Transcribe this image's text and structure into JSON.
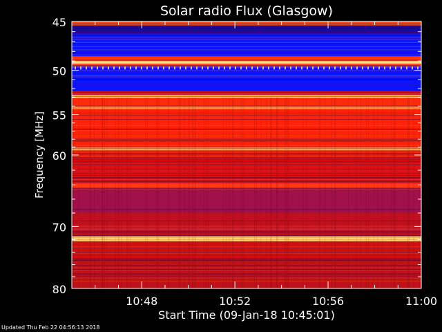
{
  "chart_data": {
    "type": "heatmap",
    "title": "Solar radio Flux (Glasgow)",
    "xlabel": "Start Time (09-Jan-18 10:45:01)",
    "ylabel": "Frequency [MHz]",
    "x_start": "10:45:01",
    "x_end": "11:00",
    "xlim_minutes": [
      0,
      15
    ],
    "ylim": [
      45,
      80
    ],
    "y_scale": "log",
    "y_axis_inverted": true,
    "x_ticks": [
      {
        "label": "10:48",
        "minute": 3
      },
      {
        "label": "10:52",
        "minute": 7
      },
      {
        "label": "10:56",
        "minute": 11
      },
      {
        "label": "11:00",
        "minute": 15
      }
    ],
    "y_ticks": [
      {
        "label": "45",
        "value": 45
      },
      {
        "label": "50",
        "value": 50
      },
      {
        "label": "55",
        "value": 55
      },
      {
        "label": "60",
        "value": 60
      },
      {
        "label": "70",
        "value": 70
      },
      {
        "label": "80",
        "value": 80
      }
    ],
    "y_minor_ticks": [
      46,
      47,
      48,
      49,
      51,
      52,
      53,
      54,
      56,
      57,
      58,
      59,
      62,
      64,
      66,
      68,
      72,
      74,
      76,
      78
    ],
    "x_minor_ticks": [
      1,
      2,
      4,
      5,
      6,
      8,
      9,
      10,
      12,
      13,
      14
    ],
    "intensity_bands": [
      {
        "from": 45.0,
        "to": 45.4,
        "color": "#ff4a10"
      },
      {
        "from": 45.4,
        "to": 46.2,
        "color": "#1a0aa0"
      },
      {
        "from": 46.2,
        "to": 48.5,
        "color": "#0a14ff"
      },
      {
        "from": 48.5,
        "to": 49.0,
        "color": "#ff3008"
      },
      {
        "from": 49.0,
        "to": 49.3,
        "color": "#ffe08a"
      },
      {
        "from": 49.3,
        "to": 49.6,
        "color": "#ff4010"
      },
      {
        "from": 49.6,
        "to": 52.3,
        "color": "#0a14ff"
      },
      {
        "from": 52.3,
        "to": 52.7,
        "color": "#c0102a"
      },
      {
        "from": 52.7,
        "to": 53.1,
        "color": "#ffb050"
      },
      {
        "from": 53.1,
        "to": 54.0,
        "color": "#ff2a08"
      },
      {
        "from": 54.0,
        "to": 54.4,
        "color": "#ff8a30"
      },
      {
        "from": 54.4,
        "to": 59.0,
        "color": "#ff2208"
      },
      {
        "from": 59.0,
        "to": 59.5,
        "color": "#ffa040"
      },
      {
        "from": 59.5,
        "to": 63.8,
        "color": "#e01010"
      },
      {
        "from": 63.8,
        "to": 64.4,
        "color": "#ff3a18"
      },
      {
        "from": 64.4,
        "to": 68.0,
        "color": "#a0104a"
      },
      {
        "from": 68.0,
        "to": 71.5,
        "color": "#c01020"
      },
      {
        "from": 71.5,
        "to": 72.3,
        "color": "#ffd070"
      },
      {
        "from": 72.3,
        "to": 75.0,
        "color": "#d01010"
      },
      {
        "from": 75.0,
        "to": 80.0,
        "color": "#c01018"
      }
    ],
    "colors": {
      "background": "#000000",
      "text": "#ffffff",
      "axis": "#ffffff"
    }
  },
  "footer": {
    "updated": "Updated Thu Feb 22 04:56:13 2018"
  }
}
